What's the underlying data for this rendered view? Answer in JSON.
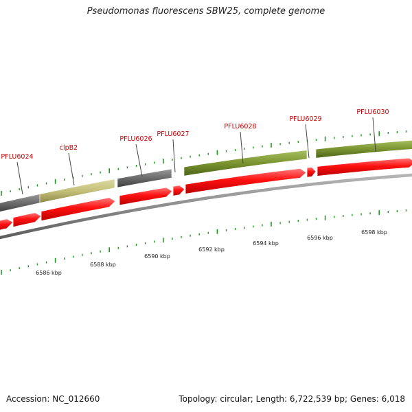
{
  "title": "Pseudomonas fluorescens SBW25, complete genome",
  "footer": {
    "accession": "Accession: NC_012660",
    "summary": "Topology: circular; Length: 6,722,539 bp; Genes: 6,018"
  },
  "colors": {
    "cds_red": "#ff1010",
    "cds_red_dark": "#a00000",
    "gene_gray": "#6e6e6e",
    "gene_olive": "#7a9430",
    "gene_khaki": "#c4c07a",
    "backbone": "#8c8c8c",
    "tick_green": "#1f9a1f",
    "label_red": "#cc0000"
  },
  "gene_labels": [
    "PFLU6024",
    "clpB2",
    "PFLU6026",
    "PFLU6027",
    "PFLU6028",
    "PFLU6029",
    "PFLU6030"
  ],
  "scale_labels": [
    "6586 kbp",
    "6588 kbp",
    "6590 kbp",
    "6592 kbp",
    "6594 kbp",
    "6596 kbp",
    "6598 kbp"
  ]
}
